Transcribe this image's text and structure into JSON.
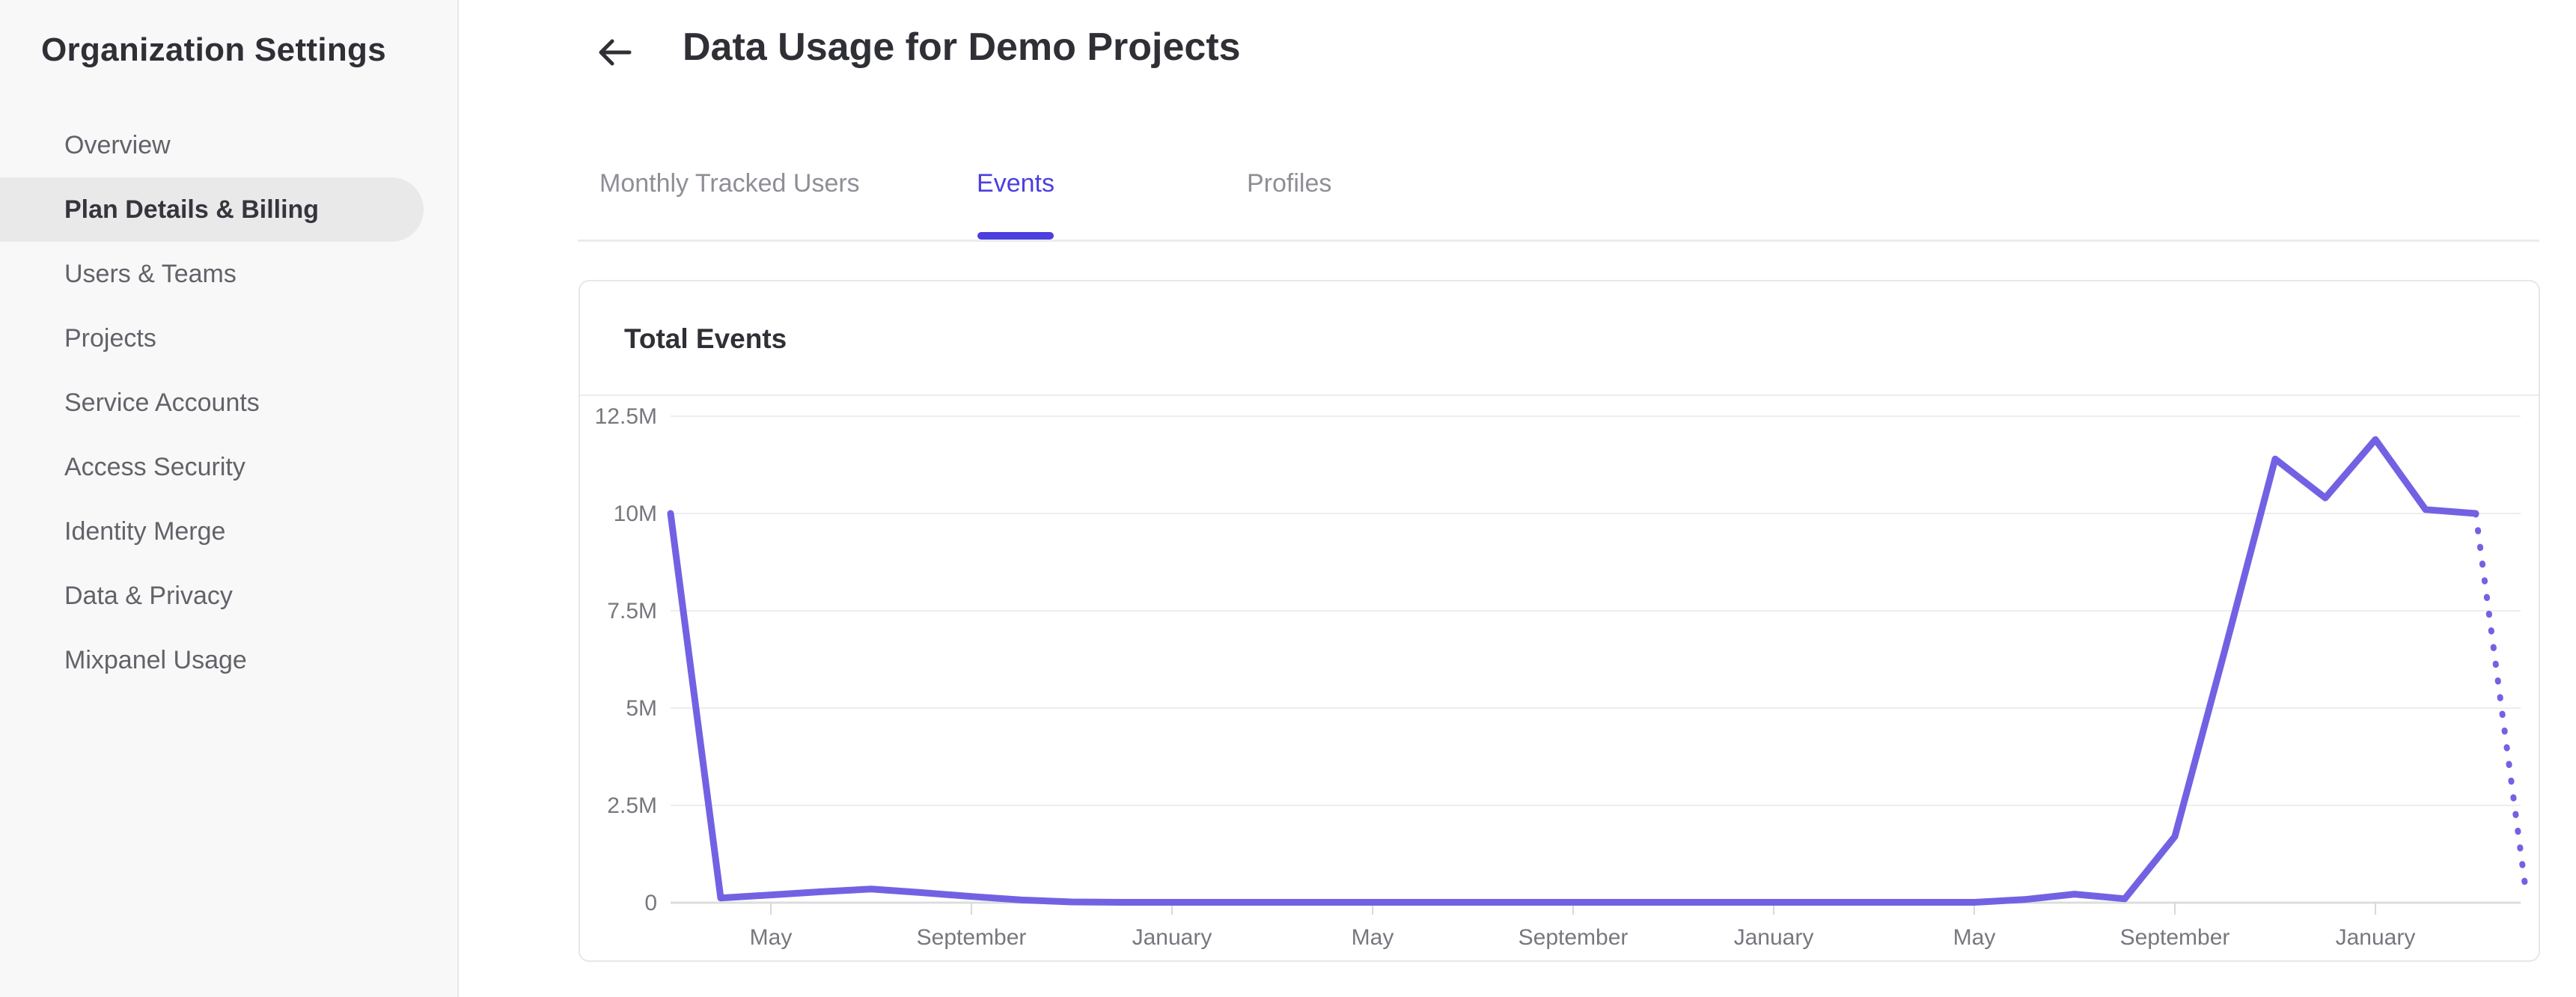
{
  "sidebar": {
    "title": "Organization Settings",
    "items": [
      {
        "label": "Overview",
        "selected": false
      },
      {
        "label": "Plan Details & Billing",
        "selected": true
      },
      {
        "label": "Users & Teams",
        "selected": false
      },
      {
        "label": "Projects",
        "selected": false
      },
      {
        "label": "Service Accounts",
        "selected": false
      },
      {
        "label": "Access Security",
        "selected": false
      },
      {
        "label": "Identity Merge",
        "selected": false
      },
      {
        "label": "Data & Privacy",
        "selected": false
      },
      {
        "label": "Mixpanel Usage",
        "selected": false
      }
    ]
  },
  "header": {
    "title": "Data Usage for Demo Projects"
  },
  "tabs": [
    {
      "label": "Monthly Tracked Users",
      "active": false
    },
    {
      "label": "Events",
      "active": true
    },
    {
      "label": "Profiles",
      "active": false
    }
  ],
  "card": {
    "title": "Total Events"
  },
  "colors": {
    "accent": "#4b3fe0",
    "line": "#7262e3",
    "grid": "#ededee",
    "axis": "#dcdcde",
    "tick": "#d9d9db",
    "axis_text": "#77777e"
  },
  "chart_data": {
    "type": "line",
    "title": "Total Events",
    "x_unit": "month",
    "y_unit": "events (millions)",
    "values_millions": [
      10,
      0.12,
      0.2,
      0.28,
      0.35,
      0.26,
      0.16,
      0.07,
      0.02,
      0.01,
      0.01,
      0.01,
      0.01,
      0.01,
      0.01,
      0.01,
      0.01,
      0.01,
      0.01,
      0.01,
      0.01,
      0.01,
      0.01,
      0.01,
      0.01,
      0.01,
      0.01,
      0.08,
      0.22,
      0.1,
      1.7,
      6.5,
      11.4,
      10.4,
      11.9,
      10.1,
      10,
      0.3
    ],
    "x_tick_indices": [
      2,
      6,
      10,
      14,
      18,
      22,
      26,
      30,
      34
    ],
    "x_tick_labels": [
      "May",
      "September",
      "January",
      "May",
      "September",
      "January",
      "May",
      "September",
      "January"
    ],
    "y_tick_values": [
      0,
      2.5,
      5,
      7.5,
      10,
      12.5
    ],
    "y_tick_labels": [
      "0",
      "2.5M",
      "5M",
      "7.5M",
      "10M",
      "12.5M"
    ],
    "ylim": [
      0,
      12.5
    ],
    "grid": "horizontal",
    "legend": "none",
    "projected_last_segment_dotted": true
  }
}
